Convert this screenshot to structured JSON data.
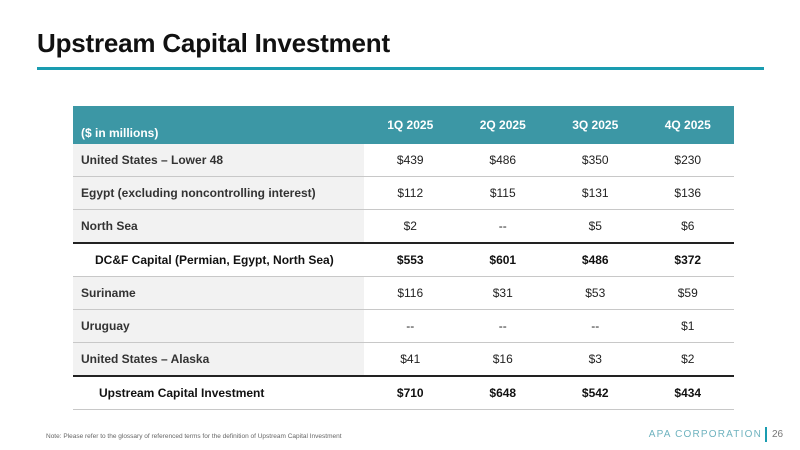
{
  "title": "Upstream Capital Investment",
  "table": {
    "header": [
      "($ in millions)",
      "1Q 2025",
      "2Q 2025",
      "3Q 2025",
      "4Q 2025"
    ],
    "rows": [
      {
        "label": "United States – Lower 48",
        "values": [
          "$439",
          "$486",
          "$350",
          "$230"
        ],
        "total": false
      },
      {
        "label": "Egypt (excluding noncontrolling interest)",
        "values": [
          "$112",
          "$115",
          "$131",
          "$136"
        ],
        "total": false
      },
      {
        "label": "North Sea",
        "values": [
          "$2",
          "--",
          "$5",
          "$6"
        ],
        "total": false
      },
      {
        "label": "DC&F Capital (Permian, Egypt, North Sea)",
        "values": [
          "$553",
          "$601",
          "$486",
          "$372"
        ],
        "total": true
      },
      {
        "label": "Suriname",
        "values": [
          "$116",
          "$31",
          "$53",
          "$59"
        ],
        "total": false
      },
      {
        "label": "Uruguay",
        "values": [
          "--",
          "--",
          "--",
          "$1"
        ],
        "total": false
      },
      {
        "label": "United States – Alaska",
        "values": [
          "$41",
          "$16",
          "$3",
          "$2"
        ],
        "total": false
      },
      {
        "label": "Upstream Capital Investment",
        "values": [
          "$710",
          "$648",
          "$542",
          "$434"
        ],
        "total": true
      }
    ]
  },
  "footnote": "Note: Please refer to the glossary of referenced terms for the definition of Upstream Capital Investment",
  "brand": "APA CORPORATION",
  "page_number": "26",
  "colors": {
    "accent": "#1a9cb0",
    "header_fill": "#3c97a5",
    "label_shade": "#f2f2f2"
  }
}
